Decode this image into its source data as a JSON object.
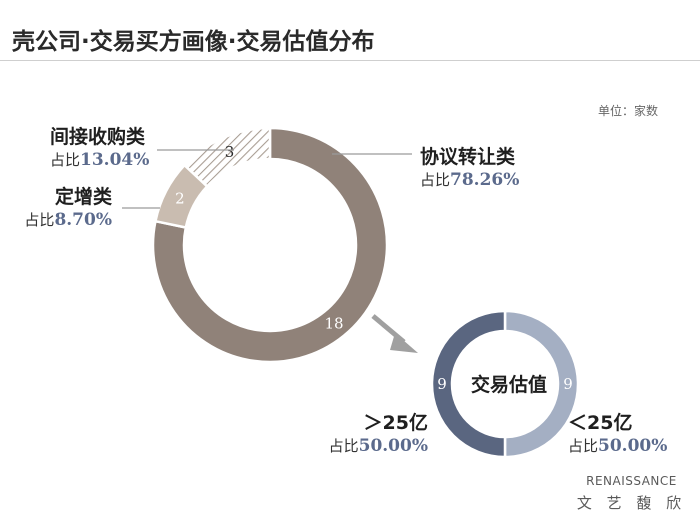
{
  "header": {
    "title": "壳公司·交易买方画像·交易估值分布"
  },
  "unit_note": "单位：家数",
  "share_prefix": "占比",
  "logo": {
    "text_en": "RENAISSANCE",
    "text_zh": "文 艺 馥 欣"
  },
  "colors": {
    "main_large": "#908279",
    "main_medium": "#c9bcb0",
    "main_small": "#a89c92",
    "val_gt": "#5a6680",
    "val_lt": "#a4afc3",
    "pct_text": "#5b6a8c",
    "leader": "#9a9a9a",
    "arrow": "#a0a0a0"
  },
  "chart_data": [
    {
      "type": "pie",
      "style": "donut",
      "title": "",
      "unit": "单位：家数",
      "categories": [
        "协议转让类",
        "定增类",
        "间接收购类"
      ],
      "values": [
        18,
        2,
        3
      ],
      "shares": [
        "78.26%",
        "8.70%",
        "13.04%"
      ]
    },
    {
      "type": "pie",
      "style": "donut",
      "title": "交易估值",
      "categories": [
        "＜25亿",
        "＞25亿"
      ],
      "values": [
        9,
        9
      ],
      "shares": [
        "50.00%",
        "50.00%"
      ]
    }
  ]
}
